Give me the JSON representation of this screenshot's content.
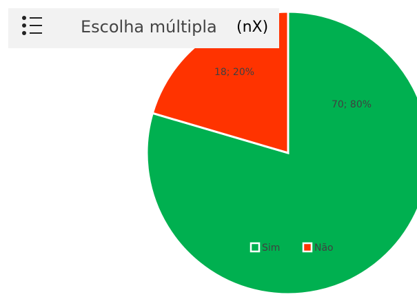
{
  "header": {
    "title": "Escolha múltipla",
    "badge": "(nX)"
  },
  "chart_data": {
    "type": "pie",
    "categories": [
      "Sim",
      "Não"
    ],
    "values": [
      70,
      18
    ],
    "value_labels": [
      "70; 80%",
      "18; 20%"
    ],
    "colors": [
      "#00b050",
      "#ff3300"
    ],
    "legend": "bottom"
  }
}
